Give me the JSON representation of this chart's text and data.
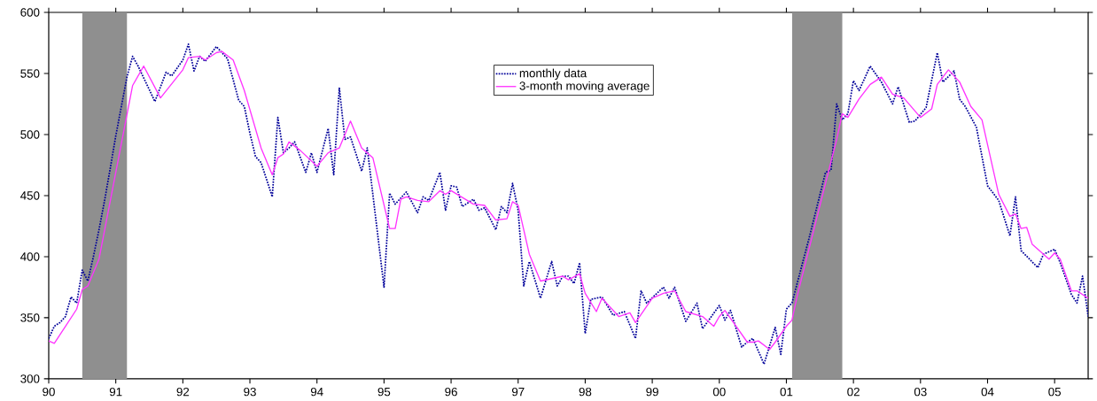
{
  "chart_data": {
    "type": "line",
    "xlim": [
      "1990-01",
      "2005-07"
    ],
    "xticks": [
      {
        "value": "1990-01",
        "label": "90"
      },
      {
        "value": "1991-01",
        "label": "91"
      },
      {
        "value": "1992-01",
        "label": "92"
      },
      {
        "value": "1993-01",
        "label": "93"
      },
      {
        "value": "1994-01",
        "label": "94"
      },
      {
        "value": "1995-01",
        "label": "95"
      },
      {
        "value": "1996-01",
        "label": "96"
      },
      {
        "value": "1997-01",
        "label": "97"
      },
      {
        "value": "1998-01",
        "label": "98"
      },
      {
        "value": "1999-01",
        "label": "99"
      },
      {
        "value": "2000-01",
        "label": "00"
      },
      {
        "value": "2001-01",
        "label": "01"
      },
      {
        "value": "2002-01",
        "label": "02"
      },
      {
        "value": "2003-01",
        "label": "03"
      },
      {
        "value": "2004-01",
        "label": "04"
      },
      {
        "value": "2005-01",
        "label": "05"
      }
    ],
    "ylim": [
      300,
      600
    ],
    "yticks": [
      300,
      350,
      400,
      450,
      500,
      550,
      600
    ],
    "legend": "top",
    "bands": [
      {
        "axis": "x",
        "from": "1990-07",
        "to": "1991-03",
        "color": "#8f8f8f"
      },
      {
        "axis": "x",
        "from": "2001-02",
        "to": "2001-11",
        "color": "#8f8f8f"
      }
    ],
    "series": [
      {
        "name": "monthly data",
        "color": "#000099",
        "line_style": "dotted",
        "x": [
          "1990-01",
          "1990-02",
          "1990-03",
          "1990-04",
          "1990-05",
          "1990-06",
          "1990-07",
          "1990-08",
          "1990-09",
          "1990-10",
          "1990-11",
          "1990-12",
          "1991-01",
          "1991-02",
          "1991-03",
          "1991-04",
          "1991-05",
          "1991-08",
          "1991-10",
          "1991-11",
          "1992-01",
          "1992-02",
          "1992-03",
          "1992-04",
          "1992-05",
          "1992-07",
          "1992-08",
          "1992-09",
          "1992-11",
          "1992-12",
          "1993-01",
          "1993-02",
          "1993-03",
          "1993-05",
          "1993-06",
          "1993-07",
          "1993-08",
          "1993-09",
          "1993-11",
          "1993-12",
          "1994-01",
          "1994-03",
          "1994-04",
          "1994-05",
          "1994-06",
          "1994-07",
          "1994-09",
          "1994-10",
          "1995-01",
          "1995-02",
          "1995-03",
          "1995-05",
          "1995-07",
          "1995-08",
          "1995-09",
          "1995-11",
          "1995-12",
          "1996-01",
          "1996-02",
          "1996-03",
          "1996-05",
          "1996-06",
          "1996-07",
          "1996-09",
          "1996-10",
          "1996-11",
          "1996-12",
          "1997-01",
          "1997-02",
          "1997-03",
          "1997-05",
          "1997-07",
          "1997-08",
          "1997-09",
          "1997-10",
          "1997-11",
          "1997-12",
          "1998-01",
          "1998-02",
          "1998-04",
          "1998-06",
          "1998-08",
          "1998-10",
          "1998-11",
          "1998-12",
          "1999-03",
          "1999-04",
          "1999-05",
          "1999-07",
          "1999-09",
          "1999-10",
          "2000-01",
          "2000-02",
          "2000-03",
          "2000-05",
          "2000-06",
          "2000-07",
          "2000-09",
          "2000-11",
          "2000-12",
          "2001-01",
          "2001-02",
          "2001-05",
          "2001-08",
          "2001-09",
          "2001-10",
          "2001-11",
          "2001-12",
          "2002-01",
          "2002-02",
          "2002-04",
          "2002-06",
          "2002-08",
          "2002-09",
          "2002-11",
          "2002-12",
          "2003-02",
          "2003-04",
          "2003-05",
          "2003-07",
          "2003-08",
          "2003-09",
          "2003-11",
          "2004-01",
          "2004-03",
          "2004-05",
          "2004-06",
          "2004-07",
          "2004-10",
          "2004-11",
          "2005-01",
          "2005-02",
          "2005-04",
          "2005-05",
          "2005-06",
          "2005-07"
        ],
        "values": [
          333,
          343,
          346,
          351,
          367,
          362,
          389,
          380,
          400,
          422,
          446,
          472,
          499,
          523,
          547,
          564,
          556,
          527,
          551,
          548,
          561,
          574,
          552,
          564,
          560,
          572,
          567,
          562,
          528,
          523,
          501,
          482,
          477,
          449,
          514,
          485,
          489,
          494,
          469,
          485,
          469,
          505,
          467,
          538,
          496,
          498,
          470,
          489,
          375,
          452,
          443,
          453,
          436,
          449,
          446,
          469,
          438,
          458,
          457,
          441,
          447,
          438,
          440,
          422,
          441,
          436,
          460,
          438,
          376,
          396,
          366,
          396,
          376,
          384,
          384,
          378,
          395,
          337,
          365,
          367,
          352,
          355,
          333,
          372,
          362,
          375,
          366,
          375,
          347,
          362,
          341,
          360,
          348,
          356,
          326,
          330,
          333,
          312,
          342,
          320,
          357,
          362,
          414,
          469,
          471,
          525,
          512,
          517,
          544,
          536,
          556,
          543,
          525,
          539,
          510,
          511,
          522,
          567,
          543,
          552,
          529,
          523,
          506,
          458,
          446,
          417,
          449,
          405,
          391,
          402,
          406,
          395,
          369,
          362,
          384,
          351
        ]
      },
      {
        "name": "3-month moving average",
        "color": "#ff33ff",
        "line_style": "solid",
        "x": [
          "1990-01",
          "1990-02",
          "1990-04",
          "1990-06",
          "1990-07",
          "1990-08",
          "1990-10",
          "1991-04",
          "1991-06",
          "1991-09",
          "1992-01",
          "1992-02",
          "1992-04",
          "1992-05",
          "1992-07",
          "1992-08",
          "1992-10",
          "1992-12",
          "1993-03",
          "1993-05",
          "1993-06",
          "1993-07",
          "1993-08",
          "1993-10",
          "1994-01",
          "1994-03",
          "1994-05",
          "1994-07",
          "1994-09",
          "1994-11",
          "1995-02",
          "1995-03",
          "1995-04",
          "1995-05",
          "1995-07",
          "1995-09",
          "1995-11",
          "1995-12",
          "1996-01",
          "1996-05",
          "1996-07",
          "1996-09",
          "1996-11",
          "1996-12",
          "1997-01",
          "1997-03",
          "1997-05",
          "1997-07",
          "1997-09",
          "1997-10",
          "1997-12",
          "1998-01",
          "1998-03",
          "1998-04",
          "1998-07",
          "1998-09",
          "1998-10",
          "1999-01",
          "1999-03",
          "1999-05",
          "1999-07",
          "1999-10",
          "1999-12",
          "2000-01",
          "2000-02",
          "2000-06",
          "2000-07",
          "2000-08",
          "2000-10",
          "2000-11",
          "2001-01",
          "2001-02",
          "2001-03",
          "2001-08",
          "2001-10",
          "2001-11",
          "2001-12",
          "2002-02",
          "2002-04",
          "2002-06",
          "2002-08",
          "2002-10",
          "2003-01",
          "2003-03",
          "2003-04",
          "2003-06",
          "2003-08",
          "2003-10",
          "2003-12",
          "2004-03",
          "2004-05",
          "2004-06",
          "2004-07",
          "2004-08",
          "2004-09",
          "2004-12",
          "2005-01",
          "2005-02",
          "2005-04",
          "2005-05",
          "2005-07"
        ],
        "values": [
          331,
          329,
          343,
          357,
          373,
          376,
          398,
          540,
          556,
          530,
          553,
          563,
          564,
          561,
          567,
          568,
          561,
          536,
          489,
          467,
          481,
          484,
          494,
          487,
          474,
          485,
          489,
          511,
          489,
          481,
          423,
          423,
          447,
          449,
          446,
          445,
          454,
          451,
          454,
          443,
          442,
          430,
          431,
          445,
          442,
          402,
          380,
          382,
          384,
          381,
          386,
          370,
          355,
          366,
          351,
          354,
          346,
          366,
          370,
          372,
          355,
          351,
          343,
          351,
          356,
          330,
          330,
          331,
          324,
          330,
          343,
          348,
          369,
          460,
          496,
          517,
          514,
          529,
          541,
          547,
          533,
          530,
          514,
          521,
          541,
          553,
          543,
          523,
          512,
          451,
          433,
          435,
          423,
          424,
          410,
          398,
          403,
          398,
          372,
          372,
          366
        ]
      }
    ]
  }
}
